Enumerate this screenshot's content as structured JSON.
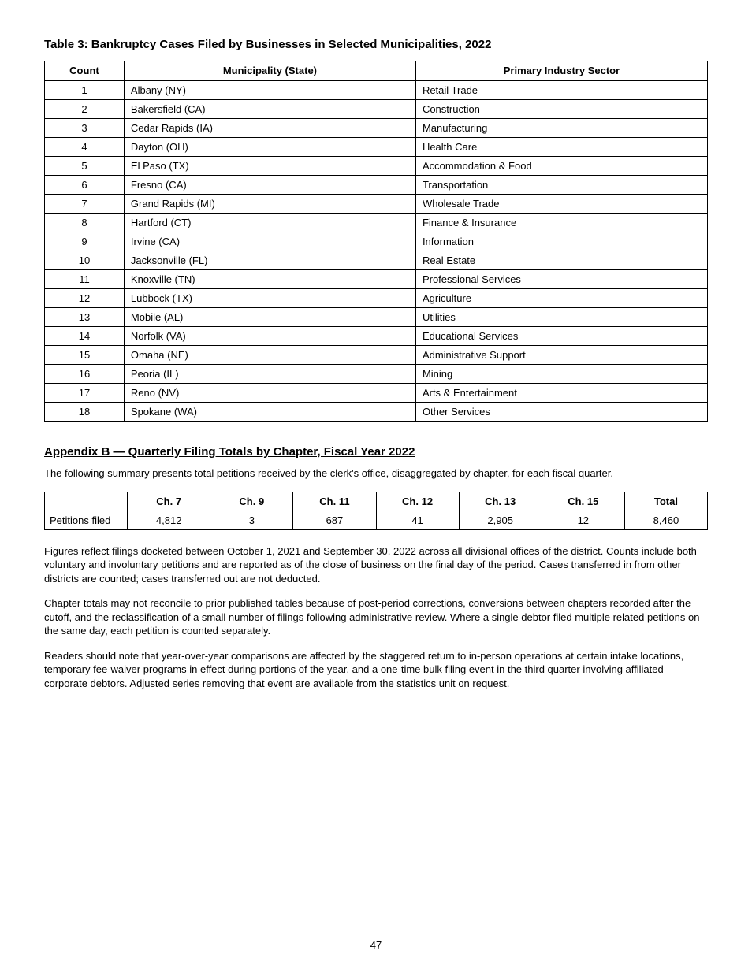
{
  "page_title": "Table 3: Bankruptcy Cases Filed by Businesses in Selected Municipalities, 2022",
  "table1": {
    "columns": [
      "Count",
      "Municipality (State)",
      "Primary Industry Sector"
    ],
    "col_classes": [
      "col-count",
      "col-loc",
      "col-biz"
    ],
    "rows": [
      [
        "1",
        "Albany (NY)",
        "Retail Trade"
      ],
      [
        "2",
        "Bakersfield (CA)",
        "Construction"
      ],
      [
        "3",
        "Cedar Rapids (IA)",
        "Manufacturing"
      ],
      [
        "4",
        "Dayton (OH)",
        "Health Care"
      ],
      [
        "5",
        "El Paso (TX)",
        "Accommodation & Food"
      ],
      [
        "6",
        "Fresno (CA)",
        "Transportation"
      ],
      [
        "7",
        "Grand Rapids (MI)",
        "Wholesale Trade"
      ],
      [
        "8",
        "Hartford (CT)",
        "Finance & Insurance"
      ],
      [
        "9",
        "Irvine (CA)",
        "Information"
      ],
      [
        "10",
        "Jacksonville (FL)",
        "Real Estate"
      ],
      [
        "11",
        "Knoxville (TN)",
        "Professional Services"
      ],
      [
        "12",
        "Lubbock (TX)",
        "Agriculture"
      ],
      [
        "13",
        "Mobile (AL)",
        "Utilities"
      ],
      [
        "14",
        "Norfolk (VA)",
        "Educational Services"
      ],
      [
        "15",
        "Omaha (NE)",
        "Administrative Support"
      ],
      [
        "16",
        "Peoria (IL)",
        "Mining"
      ],
      [
        "17",
        "Reno (NV)",
        "Arts & Entertainment"
      ],
      [
        "18",
        "Spokane (WA)",
        "Other Services"
      ]
    ]
  },
  "section_heading": "Appendix B — Quarterly Filing Totals by Chapter, Fiscal Year 2022",
  "intro_text": "The following summary presents total petitions received by the clerk's office, disaggregated by chapter, for each fiscal quarter.",
  "table2": {
    "columns": [
      "",
      "Ch. 7",
      "Ch. 9",
      "Ch. 11",
      "Ch. 12",
      "Ch. 13",
      "Ch. 15",
      "Total"
    ],
    "rows": [
      [
        "Petitions filed",
        "4,812",
        "3",
        "687",
        "41",
        "2,905",
        "12",
        "8,460"
      ]
    ]
  },
  "paragraphs": [
    "Figures reflect filings docketed between October 1, 2021 and September 30, 2022 across all divisional offices of the district. Counts include both voluntary and involuntary petitions and are reported as of the close of business on the final day of the period. Cases transferred in from other districts are counted; cases transferred out are not deducted.",
    "Chapter totals may not reconcile to prior published tables because of post-period corrections, conversions between chapters recorded after the cutoff, and the reclassification of a small number of filings following administrative review. Where a single debtor filed multiple related petitions on the same day, each petition is counted separately.",
    "Readers should note that year-over-year comparisons are affected by the staggered return to in-person operations at certain intake locations, temporary fee-waiver programs in effect during portions of the year, and a one-time bulk filing event in the third quarter involving affiliated corporate debtors. Adjusted series removing that event are available from the statistics unit on request."
  ],
  "page_number": "47",
  "colors": {
    "text": "#000000",
    "background": "#ffffff",
    "border": "#000000"
  }
}
